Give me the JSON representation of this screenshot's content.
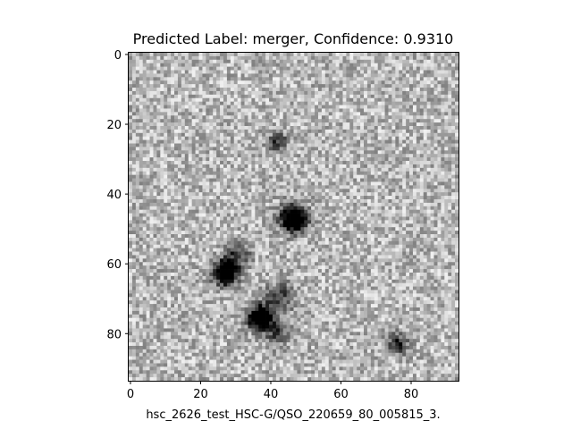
{
  "figure": {
    "title": "Predicted Label: merger, Confidence: 0.9310",
    "xlabel": "hsc_2626_test_HSC-G/QSO_220659_80_005815_3.",
    "x_ticks": [
      "0",
      "20",
      "40",
      "60",
      "80"
    ],
    "y_ticks": [
      "0",
      "20",
      "40",
      "60",
      "80"
    ],
    "image_size": 94,
    "colormap": "gray_r",
    "sources": [
      {
        "x": 46.5,
        "y": 47,
        "peak": 0.95,
        "sigma": 2.6
      },
      {
        "x": 27,
        "y": 62.5,
        "peak": 0.9,
        "sigma": 2.4
      },
      {
        "x": 37,
        "y": 75.5,
        "peak": 0.9,
        "sigma": 2.4
      },
      {
        "x": 42.5,
        "y": 70,
        "peak": 0.35,
        "sigma": 3.0
      },
      {
        "x": 30.5,
        "y": 57.5,
        "peak": 0.35,
        "sigma": 2.5
      },
      {
        "x": 42,
        "y": 80,
        "peak": 0.3,
        "sigma": 2.5
      },
      {
        "x": 42,
        "y": 25,
        "peak": 0.35,
        "sigma": 2.0
      },
      {
        "x": 76,
        "y": 83,
        "peak": 0.45,
        "sigma": 2.0
      }
    ]
  }
}
